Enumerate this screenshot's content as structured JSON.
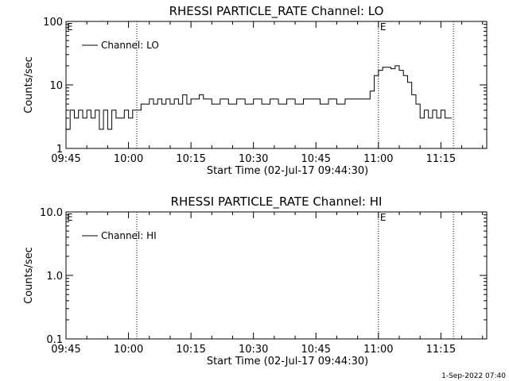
{
  "footer": {
    "timestamp": "1-Sep-2022 07:40"
  },
  "chart_data": [
    {
      "type": "line",
      "title": "RHESSI PARTICLE_RATE Channel: LO",
      "xlabel": "Start Time (02-Jul-17 09:44:30)",
      "ylabel": "Counts/sec",
      "yscale": "log",
      "xlim": [
        "09:45",
        "11:26"
      ],
      "ylim": [
        1,
        100
      ],
      "xticks": [
        "09:45",
        "10:00",
        "10:15",
        "10:30",
        "10:45",
        "11:00",
        "11:15"
      ],
      "yticks": [
        1,
        10,
        100
      ],
      "ytick_labels": [
        "1",
        "10",
        "100"
      ],
      "grid": false,
      "legend": {
        "position": "top-left",
        "entries": [
          "Channel: LO"
        ]
      },
      "markers": [
        {
          "time": "10:02",
          "label": "",
          "style": "dotted"
        },
        {
          "time": "11:00",
          "label": "E",
          "style": "dotted"
        },
        {
          "time": "11:18",
          "label": "",
          "style": "dotted"
        }
      ],
      "corner_label": "E",
      "series": [
        {
          "name": "Channel: LO",
          "x": [
            "09:45",
            "09:46",
            "09:47",
            "09:48",
            "09:49",
            "09:50",
            "09:51",
            "09:52",
            "09:53",
            "09:54",
            "09:55",
            "09:56",
            "09:57",
            "09:58",
            "09:59",
            "10:00",
            "10:01",
            "10:02",
            "10:03",
            "10:04",
            "10:05",
            "10:06",
            "10:07",
            "10:08",
            "10:09",
            "10:10",
            "10:11",
            "10:12",
            "10:13",
            "10:14",
            "10:15",
            "10:16",
            "10:17",
            "10:18",
            "10:19",
            "10:20",
            "10:22",
            "10:24",
            "10:26",
            "10:28",
            "10:30",
            "10:32",
            "10:34",
            "10:36",
            "10:38",
            "10:40",
            "10:42",
            "10:44",
            "10:46",
            "10:48",
            "10:50",
            "10:52",
            "10:54",
            "10:56",
            "10:57",
            "10:58",
            "10:59",
            "11:00",
            "11:01",
            "11:02",
            "11:03",
            "11:04",
            "11:05",
            "11:06",
            "11:07",
            "11:08",
            "11:09",
            "11:10",
            "11:11",
            "11:12",
            "11:13",
            "11:14",
            "11:15",
            "11:16",
            "11:17"
          ],
          "y": [
            2,
            4,
            3,
            4,
            3,
            4,
            3,
            4,
            2,
            4,
            2,
            4,
            3,
            3,
            4,
            3,
            4,
            4,
            5,
            5,
            6,
            5,
            6,
            5,
            6,
            5,
            6,
            5,
            7,
            5,
            6,
            6,
            7,
            6,
            6,
            5,
            6,
            5,
            6,
            5,
            6,
            5,
            6,
            5,
            6,
            5,
            6,
            6,
            5,
            6,
            5,
            6,
            6,
            6,
            6,
            8,
            14,
            17,
            19,
            19,
            18,
            20,
            17,
            14,
            11,
            7,
            5,
            3,
            4,
            3,
            4,
            3,
            4,
            3,
            3
          ]
        }
      ]
    },
    {
      "type": "line",
      "title": "RHESSI PARTICLE_RATE Channel: HI",
      "xlabel": "Start Time (02-Jul-17 09:44:30)",
      "ylabel": "Counts/sec",
      "yscale": "log",
      "xlim": [
        "09:45",
        "11:26"
      ],
      "ylim": [
        0.1,
        10
      ],
      "xticks": [
        "09:45",
        "10:00",
        "10:15",
        "10:30",
        "10:45",
        "11:00",
        "11:15"
      ],
      "yticks": [
        0.1,
        1,
        10
      ],
      "ytick_labels": [
        "0.1",
        "1.0",
        "10.0"
      ],
      "grid": false,
      "legend": {
        "position": "top-left",
        "entries": [
          "Channel: HI"
        ]
      },
      "markers": [
        {
          "time": "10:02",
          "label": "",
          "style": "dotted"
        },
        {
          "time": "11:00",
          "label": "E",
          "style": "dotted"
        },
        {
          "time": "11:18",
          "label": "",
          "style": "dotted"
        }
      ],
      "corner_label": "E",
      "series": [
        {
          "name": "Channel: HI",
          "x": [],
          "y": []
        }
      ]
    }
  ]
}
